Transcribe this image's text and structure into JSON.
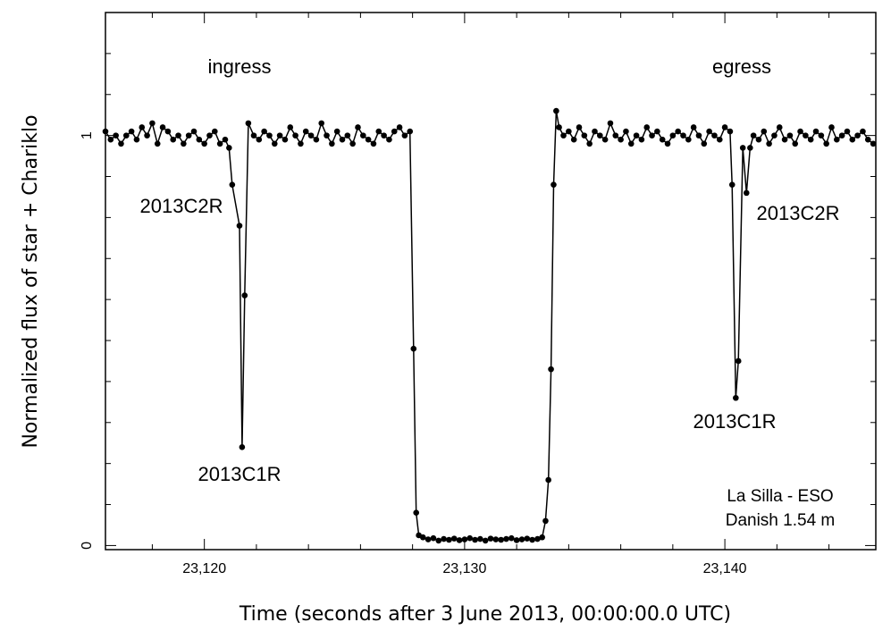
{
  "chart_data": {
    "type": "line",
    "xlabel": "Time (seconds after 3 June 2013, 00:00:00.0 UTC)",
    "ylabel": "Normalized flux of star + Chariklo",
    "annotations": [
      "ingress",
      "egress",
      "2013C2R",
      "2013C1R",
      "2013C2R",
      "2013C1R",
      "La Silla - ESO",
      "Danish 1.54 m"
    ],
    "color": "#000000",
    "xlim": [
      23116.2,
      23145.8
    ],
    "ylim": [
      -0.01,
      1.3
    ],
    "xticks": [
      {
        "value": 23120,
        "label": "23,120"
      },
      {
        "value": 23130,
        "label": "23,130"
      },
      {
        "value": 23140,
        "label": "23,140"
      }
    ],
    "xminor_ticks": [
      23118,
      23122,
      23124,
      23126,
      23128,
      23132,
      23134,
      23136,
      23138,
      23142,
      23144
    ],
    "yticks": [
      0,
      1
    ],
    "yminor_ticks": [
      0.1,
      0.2,
      0.3,
      0.4,
      0.5,
      0.6,
      0.7,
      0.8,
      0.9,
      1.1,
      1.2
    ],
    "x": [
      23116.2,
      23116.4,
      23116.6,
      23116.8,
      23117.0,
      23117.2,
      23117.4,
      23117.6,
      23117.8,
      23118.0,
      23118.2,
      23118.4,
      23118.6,
      23118.8,
      23119.0,
      23119.2,
      23119.4,
      23119.6,
      23119.8,
      23120.0,
      23120.2,
      23120.4,
      23120.6,
      23120.8,
      23120.95,
      23121.07,
      23121.35,
      23121.45,
      23121.55,
      23121.69,
      23121.9,
      23122.1,
      23122.3,
      23122.5,
      23122.7,
      23122.9,
      23123.1,
      23123.3,
      23123.5,
      23123.7,
      23123.9,
      23124.1,
      23124.3,
      23124.5,
      23124.7,
      23124.9,
      23125.1,
      23125.3,
      23125.5,
      23125.7,
      23125.9,
      23126.1,
      23126.3,
      23126.5,
      23126.7,
      23126.9,
      23127.1,
      23127.3,
      23127.5,
      23127.7,
      23127.9,
      23128.04,
      23128.14,
      23128.24,
      23128.4,
      23128.6,
      23128.8,
      23129.0,
      23129.2,
      23129.4,
      23129.6,
      23129.8,
      23130.0,
      23130.2,
      23130.4,
      23130.6,
      23130.8,
      23131.0,
      23131.2,
      23131.4,
      23131.6,
      23131.8,
      23132.0,
      23132.2,
      23132.4,
      23132.6,
      23132.8,
      23132.98,
      23133.11,
      23133.22,
      23133.32,
      23133.42,
      23133.52,
      23133.63,
      23133.8,
      23134.0,
      23134.2,
      23134.4,
      23134.6,
      23134.8,
      23135.0,
      23135.2,
      23135.4,
      23135.6,
      23135.8,
      23136.0,
      23136.2,
      23136.4,
      23136.6,
      23136.8,
      23137.0,
      23137.2,
      23137.4,
      23137.6,
      23137.8,
      23138.0,
      23138.2,
      23138.4,
      23138.6,
      23138.8,
      23139.0,
      23139.2,
      23139.4,
      23139.6,
      23139.8,
      23140.0,
      23140.2,
      23140.28,
      23140.42,
      23140.52,
      23140.69,
      23140.83,
      23140.97,
      23141.1,
      23141.3,
      23141.5,
      23141.7,
      23141.9,
      23142.1,
      23142.3,
      23142.5,
      23142.7,
      23142.9,
      23143.1,
      23143.3,
      23143.5,
      23143.7,
      23143.9,
      23144.1,
      23144.3,
      23144.5,
      23144.7,
      23144.9,
      23145.1,
      23145.3,
      23145.5,
      23145.7
    ],
    "values": [
      1.01,
      0.99,
      1.0,
      0.98,
      1.0,
      1.01,
      0.99,
      1.02,
      1.0,
      1.03,
      0.98,
      1.02,
      1.01,
      0.99,
      1.0,
      0.98,
      1.0,
      1.01,
      0.99,
      0.98,
      1.0,
      1.01,
      0.98,
      0.99,
      0.97,
      0.88,
      0.78,
      0.24,
      0.61,
      1.03,
      1.0,
      0.99,
      1.01,
      1.0,
      0.98,
      1.0,
      0.99,
      1.02,
      1.0,
      0.98,
      1.01,
      1.0,
      0.99,
      1.03,
      1.0,
      0.98,
      1.01,
      0.99,
      1.0,
      0.98,
      1.02,
      1.0,
      0.99,
      0.98,
      1.01,
      1.0,
      0.99,
      1.01,
      1.02,
      1.0,
      1.01,
      0.48,
      0.08,
      0.025,
      0.02,
      0.015,
      0.018,
      0.012,
      0.016,
      0.014,
      0.017,
      0.013,
      0.015,
      0.018,
      0.014,
      0.016,
      0.012,
      0.017,
      0.015,
      0.014,
      0.016,
      0.018,
      0.013,
      0.015,
      0.017,
      0.014,
      0.016,
      0.02,
      0.06,
      0.16,
      0.43,
      0.88,
      1.06,
      1.02,
      1.0,
      1.01,
      0.99,
      1.02,
      1.0,
      0.98,
      1.01,
      1.0,
      0.99,
      1.03,
      1.0,
      0.99,
      1.01,
      0.98,
      1.0,
      0.99,
      1.02,
      1.0,
      1.01,
      0.99,
      0.98,
      1.0,
      1.01,
      1.0,
      0.99,
      1.02,
      1.0,
      0.98,
      1.01,
      1.0,
      0.99,
      1.02,
      1.01,
      0.88,
      0.36,
      0.45,
      0.97,
      0.86,
      0.97,
      1.0,
      0.99,
      1.01,
      0.98,
      1.0,
      1.02,
      0.99,
      1.0,
      0.98,
      1.01,
      1.0,
      0.99,
      1.01,
      1.0,
      0.98,
      1.02,
      0.99,
      1.0,
      1.01,
      0.99,
      1.0,
      1.01,
      0.99,
      0.98
    ]
  }
}
